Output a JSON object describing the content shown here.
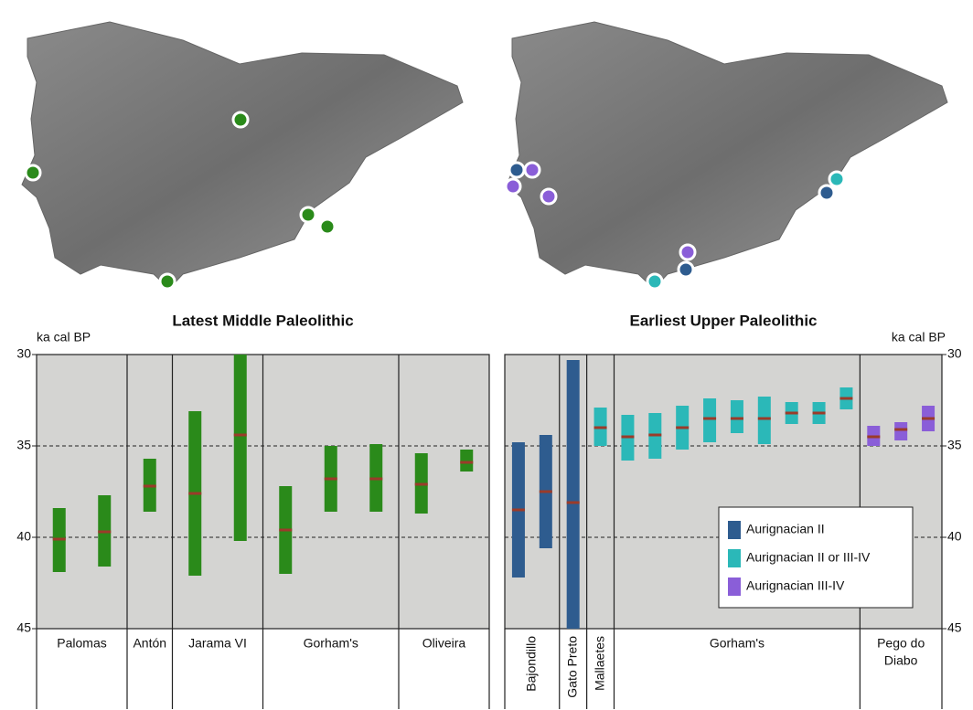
{
  "chart_data": [
    {
      "type": "range",
      "title": "Latest Middle Paleolithic",
      "ylabel": "ka cal BP",
      "yaxis": "left",
      "ylim": [
        30,
        45
      ],
      "yticks": [
        30,
        35,
        40,
        45
      ],
      "grid": [
        35,
        40
      ],
      "median_color": "#9b3b2a",
      "groups": [
        {
          "label": "Palomas",
          "bars": [
            {
              "low": 38.4,
              "high": 41.9,
              "median": 40.1,
              "color": "#2a8a1a"
            },
            {
              "low": 37.7,
              "high": 41.6,
              "median": 39.7,
              "color": "#2a8a1a"
            }
          ]
        },
        {
          "label": "Antón",
          "bars": [
            {
              "low": 35.7,
              "high": 38.6,
              "median": 37.2,
              "color": "#2a8a1a"
            }
          ]
        },
        {
          "label": "Jarama VI",
          "bars": [
            {
              "low": 33.1,
              "high": 42.1,
              "median": 37.6,
              "color": "#2a8a1a"
            },
            {
              "low": 30,
              "high": 40.2,
              "median": 34.4,
              "color": "#2a8a1a"
            }
          ]
        },
        {
          "label": "Gorham's",
          "bars": [
            {
              "low": 37.2,
              "high": 42.0,
              "median": 39.6,
              "color": "#2a8a1a"
            },
            {
              "low": 35.0,
              "high": 38.6,
              "median": 36.8,
              "color": "#2a8a1a"
            },
            {
              "low": 34.9,
              "high": 38.6,
              "median": 36.8,
              "color": "#2a8a1a"
            }
          ]
        },
        {
          "label": "Oliveira",
          "bars": [
            {
              "low": 35.4,
              "high": 38.7,
              "median": 37.1,
              "color": "#2a8a1a"
            },
            {
              "low": 35.2,
              "high": 36.4,
              "median": 35.9,
              "color": "#2a8a1a"
            }
          ]
        }
      ]
    },
    {
      "type": "range",
      "title": "Earliest Upper Paleolithic",
      "ylabel": "ka cal BP",
      "yaxis": "right",
      "ylim": [
        30,
        45
      ],
      "yticks": [
        30,
        35,
        40,
        45
      ],
      "grid": [
        35,
        40
      ],
      "median_color": "#9b3b2a",
      "series": [
        {
          "name": "Aurignacian II",
          "color": "#2e5c8f"
        },
        {
          "name": "Aurignacian II or III-IV",
          "color": "#2bb8b8"
        },
        {
          "name": "Aurignacian III-IV",
          "color": "#8a5ed8"
        }
      ],
      "groups": [
        {
          "label": "Bajondillo",
          "rotated": true,
          "bars": [
            {
              "low": 34.8,
              "high": 42.2,
              "median": 38.5,
              "color": "#2e5c8f"
            },
            {
              "low": 34.4,
              "high": 40.6,
              "median": 37.5,
              "color": "#2e5c8f"
            }
          ]
        },
        {
          "label": "Gato Preto",
          "rotated": true,
          "bars": [
            {
              "low": 30.3,
              "high": 45.0,
              "median": 38.1,
              "color": "#2e5c8f"
            }
          ]
        },
        {
          "label": "Mallaetes",
          "rotated": true,
          "bars": [
            {
              "low": 32.9,
              "high": 35.0,
              "median": 34.0,
              "color": "#2bb8b8"
            }
          ]
        },
        {
          "label": "Gorham's",
          "bars": [
            {
              "low": 33.3,
              "high": 35.8,
              "median": 34.5,
              "color": "#2bb8b8"
            },
            {
              "low": 33.2,
              "high": 35.7,
              "median": 34.4,
              "color": "#2bb8b8"
            },
            {
              "low": 32.8,
              "high": 35.2,
              "median": 34.0,
              "color": "#2bb8b8"
            },
            {
              "low": 32.4,
              "high": 34.8,
              "median": 33.5,
              "color": "#2bb8b8"
            },
            {
              "low": 32.5,
              "high": 34.3,
              "median": 33.5,
              "color": "#2bb8b8"
            },
            {
              "low": 32.3,
              "high": 34.9,
              "median": 33.5,
              "color": "#2bb8b8"
            },
            {
              "low": 32.6,
              "high": 33.8,
              "median": 33.2,
              "color": "#2bb8b8"
            },
            {
              "low": 32.6,
              "high": 33.8,
              "median": 33.2,
              "color": "#2bb8b8"
            },
            {
              "low": 31.8,
              "high": 33.0,
              "median": 32.4,
              "color": "#2bb8b8"
            }
          ]
        },
        {
          "label": [
            "Pego do",
            "Diabo"
          ],
          "bars": [
            {
              "low": 33.9,
              "high": 35.0,
              "median": 34.5,
              "color": "#8a5ed8"
            },
            {
              "low": 33.7,
              "high": 34.7,
              "median": 34.1,
              "color": "#8a5ed8"
            },
            {
              "low": 32.8,
              "high": 34.2,
              "median": 33.5,
              "color": "#8a5ed8"
            }
          ]
        }
      ]
    }
  ]
}
